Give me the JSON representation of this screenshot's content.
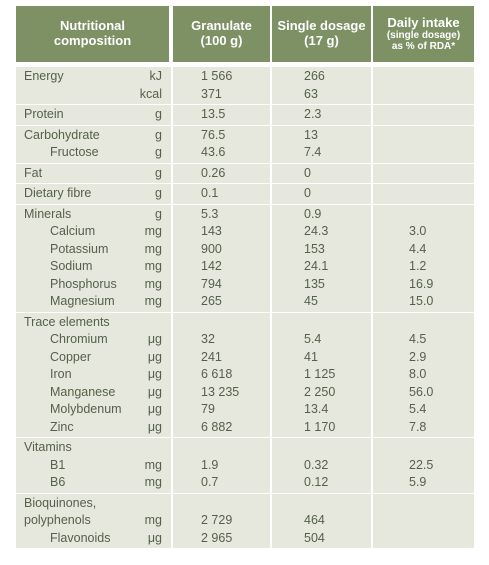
{
  "headers": {
    "composition": [
      "Nutritional",
      "composition"
    ],
    "granulate": [
      "Granulate",
      "(100 g)"
    ],
    "single": [
      "Single dosage",
      "(17 g)"
    ],
    "daily": [
      "Daily intake",
      "(single dosage)",
      "as % of RDA*"
    ]
  },
  "sections": [
    {
      "rows": [
        {
          "label": "Energy",
          "unit": "kJ",
          "granulate": "1 566",
          "single": "266",
          "daily": ""
        },
        {
          "label": "",
          "unit": "kcal",
          "granulate": "371",
          "single": "63",
          "daily": ""
        }
      ]
    },
    {
      "rows": [
        {
          "label": "Protein",
          "unit": "g",
          "granulate": "13.5",
          "single": "2.3",
          "daily": ""
        }
      ]
    },
    {
      "rows": [
        {
          "label": "Carbohydrate",
          "unit": "g",
          "granulate": "76.5",
          "single": "13",
          "daily": ""
        },
        {
          "label": "Fructose",
          "indent": true,
          "unit": "g",
          "granulate": "43.6",
          "single": "7.4",
          "daily": ""
        }
      ]
    },
    {
      "rows": [
        {
          "label": "Fat",
          "unit": "g",
          "granulate": "0.26",
          "single": "0",
          "daily": ""
        }
      ]
    },
    {
      "rows": [
        {
          "label": "Dietary fibre",
          "unit": "g",
          "granulate": "0.1",
          "single": "0",
          "daily": ""
        }
      ]
    },
    {
      "rows": [
        {
          "label": "Minerals",
          "unit": "g",
          "granulate": "5.3",
          "single": "0.9",
          "daily": ""
        },
        {
          "label": "Calcium",
          "indent": true,
          "unit": "mg",
          "granulate": "143",
          "single": "24.3",
          "daily": "3.0"
        },
        {
          "label": "Potassium",
          "indent": true,
          "unit": "mg",
          "granulate": "900",
          "single": "153",
          "daily": "4.4"
        },
        {
          "label": "Sodium",
          "indent": true,
          "unit": "mg",
          "granulate": "142",
          "single": "24.1",
          "daily": "1.2"
        },
        {
          "label": "Phosphorus",
          "indent": true,
          "unit": "mg",
          "granulate": "794",
          "single": "135",
          "daily": "16.9"
        },
        {
          "label": "Magnesium",
          "indent": true,
          "unit": "mg",
          "granulate": "265",
          "single": "45",
          "daily": "15.0"
        }
      ]
    },
    {
      "rows": [
        {
          "label": "Trace elements",
          "unit": "",
          "granulate": "",
          "single": "",
          "daily": ""
        },
        {
          "label": "Chromium",
          "indent": true,
          "unit": "μg",
          "granulate": "32",
          "single": "5.4",
          "daily": "4.5"
        },
        {
          "label": "Copper",
          "indent": true,
          "unit": "μg",
          "granulate": "241",
          "single": "41",
          "daily": "2.9"
        },
        {
          "label": "Iron",
          "indent": true,
          "unit": "μg",
          "granulate": "6 618",
          "single": "1 125",
          "daily": "8.0"
        },
        {
          "label": "Manganese",
          "indent": true,
          "unit": "μg",
          "granulate": "13 235",
          "single": "2 250",
          "daily": "56.0"
        },
        {
          "label": "Molybdenum",
          "indent": true,
          "unit": "μg",
          "granulate": "79",
          "single": "13.4",
          "daily": "5.4"
        },
        {
          "label": "Zinc",
          "indent": true,
          "unit": "μg",
          "granulate": "6 882",
          "single": "1 170",
          "daily": "7.8"
        }
      ]
    },
    {
      "rows": [
        {
          "label": "Vitamins",
          "unit": "",
          "granulate": "",
          "single": "",
          "daily": ""
        },
        {
          "label": "B1",
          "indent": true,
          "unit": "mg",
          "granulate": "1.9",
          "single": "0.32",
          "daily": "22.5"
        },
        {
          "label": "B6",
          "indent": true,
          "unit": "mg",
          "granulate": "0.7",
          "single": "0.12",
          "daily": "5.9"
        }
      ]
    },
    {
      "rows": [
        {
          "label": "Bioquinones,",
          "unit": "",
          "granulate": "",
          "single": "",
          "daily": ""
        },
        {
          "label": "polyphenols",
          "unit": "mg",
          "granulate": "2 729",
          "single": "464",
          "daily": ""
        },
        {
          "label": "Flavonoids",
          "indent": true,
          "unit": "μg",
          "granulate": "2 965",
          "single": "504",
          "daily": ""
        }
      ]
    }
  ]
}
